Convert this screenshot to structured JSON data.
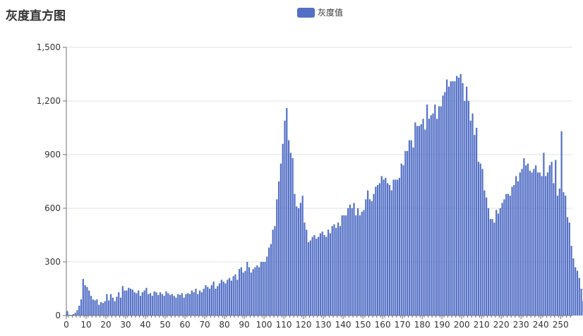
{
  "chart_data": {
    "type": "bar",
    "title": "灰度直方图",
    "series": [
      {
        "name": "灰度值",
        "color": "#5470c6",
        "values": [
          25,
          5,
          3,
          8,
          15,
          30,
          55,
          90,
          205,
          170,
          160,
          140,
          110,
          90,
          85,
          90,
          60,
          75,
          70,
          80,
          120,
          85,
          120,
          100,
          80,
          105,
          130,
          100,
          165,
          140,
          140,
          155,
          150,
          145,
          130,
          125,
          140,
          110,
          130,
          140,
          155,
          120,
          125,
          110,
          135,
          130,
          115,
          130,
          120,
          110,
          135,
          125,
          115,
          120,
          110,
          100,
          120,
          115,
          125,
          100,
          120,
          125,
          120,
          140,
          130,
          150,
          120,
          140,
          130,
          150,
          170,
          160,
          150,
          170,
          190,
          150,
          165,
          180,
          200,
          190,
          180,
          200,
          210,
          195,
          220,
          230,
          200,
          260,
          270,
          240,
          250,
          300,
          270,
          240,
          260,
          270,
          280,
          270,
          300,
          300,
          300,
          330,
          380,
          400,
          480,
          500,
          650,
          750,
          850,
          960,
          1090,
          1160,
          980,
          910,
          880,
          680,
          610,
          600,
          630,
          670,
          520,
          480,
          410,
          420,
          440,
          450,
          430,
          440,
          460,
          470,
          450,
          440,
          480,
          460,
          500,
          510,
          490,
          520,
          500,
          560,
          560,
          560,
          600,
          620,
          600,
          630,
          560,
          600,
          560,
          580,
          590,
          650,
          700,
          650,
          640,
          680,
          720,
          730,
          740,
          780,
          760,
          770,
          740,
          730,
          700,
          760,
          760,
          760,
          770,
          850,
          840,
          920,
          920,
          980,
          980,
          940,
          1080,
          1060,
          1060,
          1070,
          1100,
          1040,
          1180,
          1100,
          1120,
          1130,
          1180,
          1100,
          1170,
          1170,
          1230,
          1250,
          1320,
          1280,
          1310,
          1310,
          1310,
          1340,
          1330,
          1350,
          1300,
          1200,
          1280,
          1200,
          1090,
          1130,
          1010,
          1050,
          860,
          850,
          820,
          700,
          660,
          600,
          540,
          540,
          520,
          590,
          570,
          600,
          630,
          650,
          680,
          680,
          670,
          720,
          730,
          780,
          750,
          800,
          820,
          880,
          840,
          850,
          810,
          800,
          820,
          840,
          800,
          800,
          780,
          910,
          780,
          800,
          840,
          860,
          740,
          870,
          670,
          710,
          1030,
          690,
          670,
          550,
          520,
          390,
          320,
          270,
          250,
          210,
          150,
          80,
          20,
          10,
          5,
          0
        ],
        "note": "x positions 0..256"
      }
    ],
    "x": {
      "min": 0,
      "max": 256,
      "ticks": [
        0,
        10,
        20,
        30,
        40,
        50,
        60,
        70,
        80,
        90,
        100,
        110,
        120,
        130,
        140,
        150,
        160,
        170,
        180,
        190,
        200,
        210,
        220,
        230,
        240,
        250
      ]
    },
    "ylim": [
      0,
      1500
    ],
    "yticks": [
      {
        "value": 0,
        "label": "0"
      },
      {
        "value": 300,
        "label": "300"
      },
      {
        "value": 600,
        "label": "600"
      },
      {
        "value": 900,
        "label": "900"
      },
      {
        "value": 1200,
        "label": "1,200"
      },
      {
        "value": 1500,
        "label": "1,500"
      }
    ],
    "grid": true,
    "legend_position": "top-center"
  }
}
